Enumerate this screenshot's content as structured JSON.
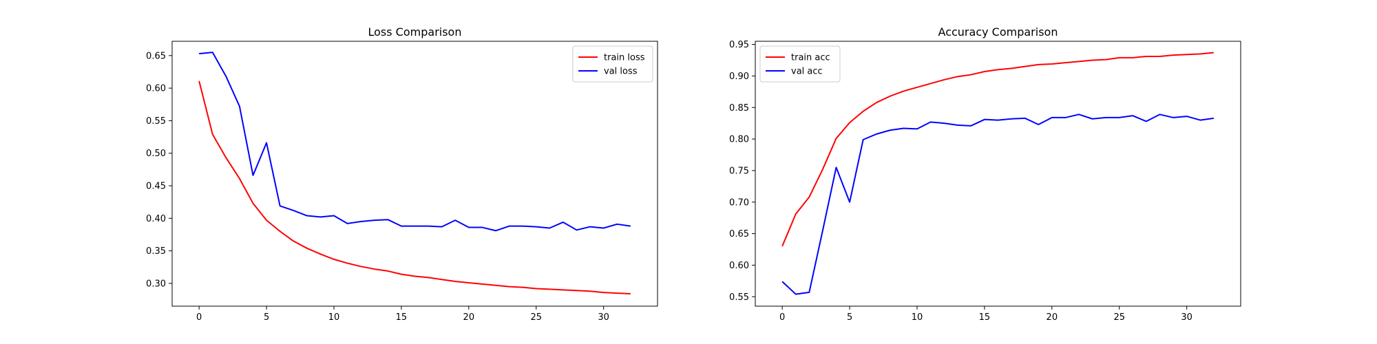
{
  "chart_data": [
    {
      "type": "line",
      "title": "Loss Comparison",
      "xlabel": "",
      "ylabel": "",
      "xlim": [
        -2,
        34
      ],
      "ylim": [
        0.265,
        0.672
      ],
      "xticks": [
        0,
        5,
        10,
        15,
        20,
        25,
        30
      ],
      "yticks": [
        0.3,
        0.35,
        0.4,
        0.45,
        0.5,
        0.55,
        0.6,
        0.65
      ],
      "ytick_labels": [
        "0.30",
        "0.35",
        "0.40",
        "0.45",
        "0.50",
        "0.55",
        "0.60",
        "0.65"
      ],
      "legend_position": "top-right",
      "grid": false,
      "x": [
        0,
        1,
        2,
        3,
        4,
        5,
        6,
        7,
        8,
        9,
        10,
        11,
        12,
        13,
        14,
        15,
        16,
        17,
        18,
        19,
        20,
        21,
        22,
        23,
        24,
        25,
        26,
        27,
        28,
        29,
        30,
        31,
        32
      ],
      "series": [
        {
          "name": "train loss",
          "color": "#ff0000",
          "values": [
            0.611,
            0.529,
            0.493,
            0.461,
            0.423,
            0.397,
            0.38,
            0.365,
            0.354,
            0.345,
            0.337,
            0.331,
            0.326,
            0.322,
            0.319,
            0.314,
            0.311,
            0.309,
            0.306,
            0.303,
            0.301,
            0.299,
            0.297,
            0.295,
            0.294,
            0.292,
            0.291,
            0.29,
            0.289,
            0.288,
            0.286,
            0.285,
            0.284
          ]
        },
        {
          "name": "val loss",
          "color": "#0000ff",
          "values": [
            0.653,
            0.655,
            0.618,
            0.572,
            0.466,
            0.516,
            0.419,
            0.412,
            0.404,
            0.402,
            0.404,
            0.392,
            0.395,
            0.397,
            0.398,
            0.388,
            0.388,
            0.388,
            0.387,
            0.397,
            0.386,
            0.386,
            0.381,
            0.388,
            0.388,
            0.387,
            0.385,
            0.394,
            0.382,
            0.387,
            0.385,
            0.391,
            0.388
          ]
        }
      ]
    },
    {
      "type": "line",
      "title": "Accuracy Comparison",
      "xlabel": "",
      "ylabel": "",
      "xlim": [
        -2,
        34
      ],
      "ylim": [
        0.535,
        0.955
      ],
      "xticks": [
        0,
        5,
        10,
        15,
        20,
        25,
        30
      ],
      "yticks": [
        0.55,
        0.6,
        0.65,
        0.7,
        0.75,
        0.8,
        0.85,
        0.9,
        0.95
      ],
      "ytick_labels": [
        "0.55",
        "0.60",
        "0.65",
        "0.70",
        "0.75",
        "0.80",
        "0.85",
        "0.90",
        "0.95"
      ],
      "legend_position": "top-left",
      "grid": false,
      "x": [
        0,
        1,
        2,
        3,
        4,
        5,
        6,
        7,
        8,
        9,
        10,
        11,
        12,
        13,
        14,
        15,
        16,
        17,
        18,
        19,
        20,
        21,
        22,
        23,
        24,
        25,
        26,
        27,
        28,
        29,
        30,
        31,
        32
      ],
      "series": [
        {
          "name": "train acc",
          "color": "#ff0000",
          "values": [
            0.63,
            0.681,
            0.708,
            0.752,
            0.801,
            0.826,
            0.844,
            0.858,
            0.868,
            0.876,
            0.882,
            0.888,
            0.894,
            0.899,
            0.902,
            0.907,
            0.91,
            0.912,
            0.915,
            0.918,
            0.919,
            0.921,
            0.923,
            0.925,
            0.926,
            0.929,
            0.929,
            0.931,
            0.931,
            0.933,
            0.934,
            0.935,
            0.937
          ]
        },
        {
          "name": "val acc",
          "color": "#0000ff",
          "values": [
            0.574,
            0.554,
            0.557,
            0.655,
            0.755,
            0.7,
            0.799,
            0.808,
            0.814,
            0.817,
            0.816,
            0.827,
            0.825,
            0.822,
            0.821,
            0.831,
            0.83,
            0.832,
            0.833,
            0.823,
            0.834,
            0.834,
            0.839,
            0.832,
            0.834,
            0.834,
            0.837,
            0.828,
            0.839,
            0.834,
            0.836,
            0.83,
            0.833
          ]
        }
      ]
    }
  ]
}
